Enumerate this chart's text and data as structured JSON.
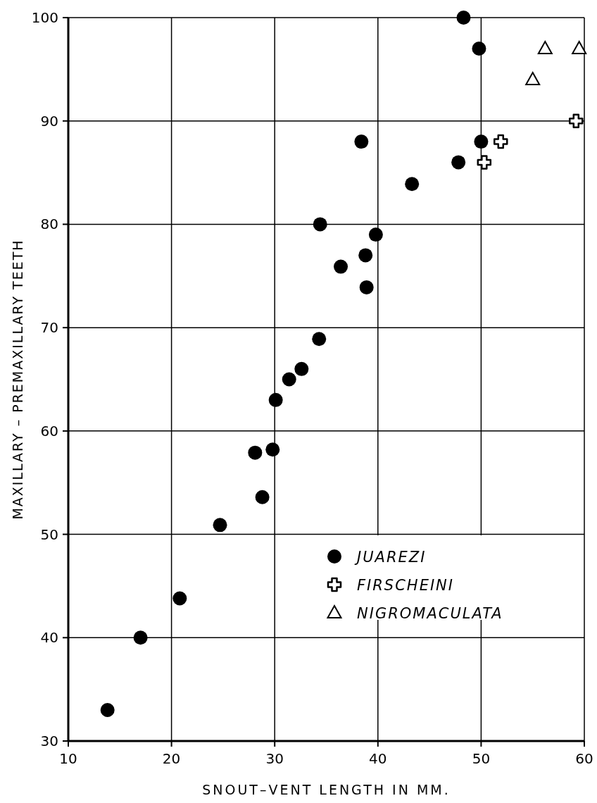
{
  "chart_data": {
    "type": "scatter",
    "xlabel": "SNOUT–VENT LENGTH IN MM.",
    "ylabel": "MAXILLARY – PREMAXILLARY TEETH",
    "xlim": [
      10,
      60
    ],
    "xticks": [
      10,
      20,
      30,
      40,
      50,
      60
    ],
    "ylim": [
      30,
      100
    ],
    "yticks": [
      30,
      40,
      50,
      60,
      70,
      80,
      90,
      100
    ],
    "grid": true,
    "legend": "bottom right",
    "series": [
      {
        "name": "JUAREZI",
        "color": "#000000",
        "marker": "circle",
        "x": [
          13.8,
          17.0,
          20.8,
          24.7,
          28.8,
          28.1,
          29.8,
          30.1,
          31.4,
          32.6,
          34.3,
          34.4,
          36.4,
          38.8,
          38.9,
          39.8,
          38.4,
          43.3,
          47.8,
          50.0,
          48.3,
          49.8
        ],
        "values": [
          33,
          40,
          43.8,
          50.9,
          53.6,
          57.9,
          58.2,
          63,
          65,
          66,
          68.9,
          80,
          75.9,
          77,
          73.9,
          79,
          88,
          83.9,
          86,
          88,
          100,
          97
        ]
      },
      {
        "name": "FIRSCHEINI",
        "color": "#000000",
        "marker": "cross",
        "x": [
          50.3,
          51.9,
          59.2
        ],
        "values": [
          86,
          88,
          90
        ]
      },
      {
        "name": "NIGROMACULATA",
        "color": "#000000",
        "marker": "triangle",
        "x": [
          55.0,
          56.2,
          59.5
        ],
        "values": [
          94,
          97,
          97
        ]
      }
    ]
  }
}
